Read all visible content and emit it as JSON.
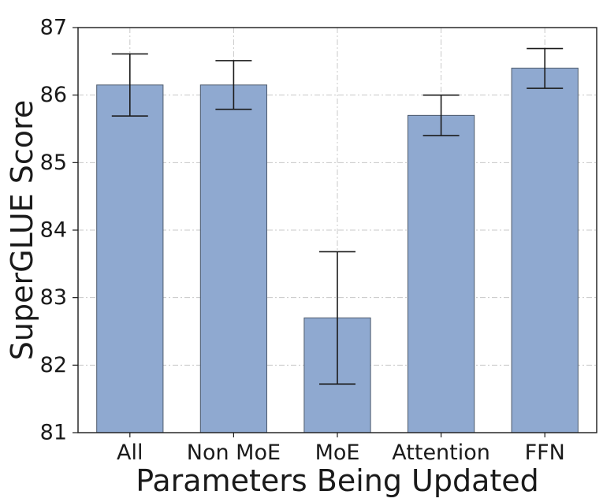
{
  "chart_data": {
    "type": "bar",
    "title": "",
    "xlabel": "Parameters Being Updated",
    "ylabel": "SuperGLUE Score",
    "ylim": [
      81,
      87
    ],
    "yticks": [
      81,
      82,
      83,
      84,
      85,
      86,
      87
    ],
    "grid": true,
    "categories": [
      "All",
      "Non MoE",
      "MoE",
      "Attention",
      "FFN"
    ],
    "values": [
      86.15,
      86.15,
      82.7,
      85.7,
      86.4
    ],
    "error_bars": {
      "lower": [
        85.69,
        85.79,
        81.72,
        85.4,
        86.1
      ],
      "upper": [
        86.61,
        86.51,
        83.68,
        86.0,
        86.69
      ]
    },
    "colors": {
      "bar_fill": "#8fa9d0",
      "bar_edge": "#4d5a6b",
      "error_bar": "#1a1a1a",
      "grid": "#c8c8c8"
    }
  }
}
